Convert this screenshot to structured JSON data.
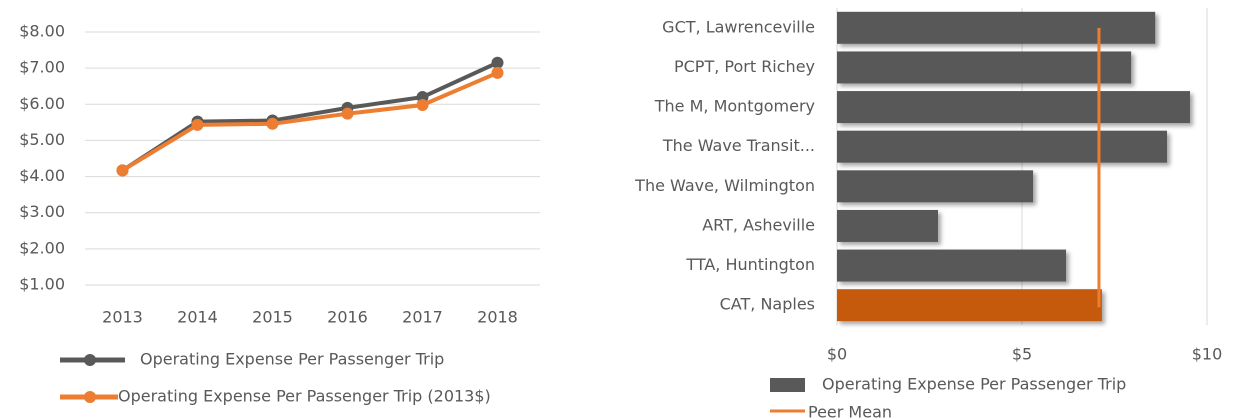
{
  "chart_data": [
    {
      "type": "line",
      "categories": [
        "2013",
        "2014",
        "2015",
        "2016",
        "2017",
        "2018"
      ],
      "series": [
        {
          "name": "Operating Expense Per Passenger Trip",
          "color": "#595959",
          "values": [
            4.17,
            5.52,
            5.55,
            5.9,
            6.2,
            7.15
          ]
        },
        {
          "name": "Operating Expense Per Passenger Trip (2013$)",
          "color": "#ed7d31",
          "values": [
            4.17,
            5.43,
            5.46,
            5.74,
            5.98,
            6.87
          ]
        }
      ],
      "ylim": [
        1,
        8
      ],
      "yticks": [
        {
          "value": 1,
          "label": "$1.00"
        },
        {
          "value": 2,
          "label": "$2.00"
        },
        {
          "value": 3,
          "label": "$3.00"
        },
        {
          "value": 4,
          "label": "$4.00"
        },
        {
          "value": 5,
          "label": "$5.00"
        },
        {
          "value": 6,
          "label": "$6.00"
        },
        {
          "value": 7,
          "label": "$7.00"
        },
        {
          "value": 8,
          "label": "$8.00"
        }
      ],
      "grid": true,
      "legend": "bottom"
    },
    {
      "type": "barh",
      "categories": [
        "GCT, Lawrenceville",
        "PCPT, Port Richey",
        "The M, Montgomery",
        "The Wave Transit...",
        "The Wave, Wilmington",
        "ART, Asheville",
        "TTA, Huntington",
        "CAT, Naples"
      ],
      "series": [
        {
          "name": "Operating Expense Per Passenger Trip",
          "color": "#595959",
          "values": [
            8.6,
            7.95,
            9.54,
            8.92,
            5.3,
            2.73,
            6.19,
            7.16
          ]
        }
      ],
      "bar_colors": [
        "#595959",
        "#595959",
        "#595959",
        "#595959",
        "#595959",
        "#595959",
        "#595959",
        "#c55a11"
      ],
      "reference_line": {
        "name": "Peer Mean",
        "value": 7.08,
        "color": "#ed7d31"
      },
      "xlim": [
        0,
        10
      ],
      "xticks": [
        {
          "value": 0,
          "label": "$0"
        },
        {
          "value": 5,
          "label": "$5"
        },
        {
          "value": 10,
          "label": "$10"
        }
      ],
      "grid": true,
      "legend": "bottom"
    }
  ]
}
